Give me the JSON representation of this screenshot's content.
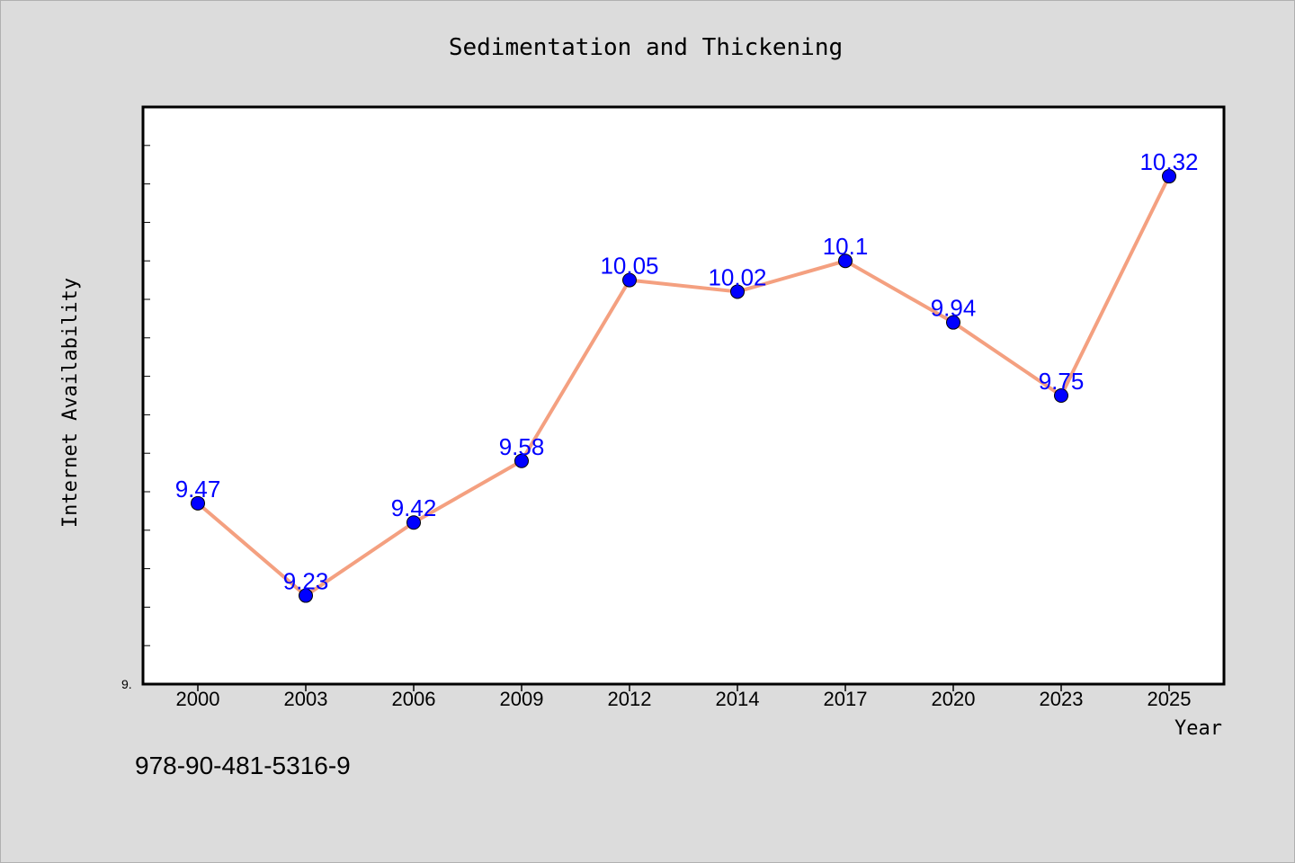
{
  "chart_data": {
    "type": "line",
    "title": "Sedimentation and Thickening",
    "xlabel": "Year",
    "ylabel": "Internet Availability",
    "categories": [
      "2000",
      "2003",
      "2006",
      "2009",
      "2012",
      "2014",
      "2017",
      "2020",
      "2023",
      "2025"
    ],
    "series": [
      {
        "values": [
          9.47,
          9.23,
          9.42,
          9.58,
          10.05,
          10.02,
          10.1,
          9.94,
          9.75,
          10.32
        ]
      }
    ],
    "data_labels": [
      "9.47",
      "9.23",
      "9.42",
      "9.58",
      "10.05",
      "10.02",
      "10.1",
      "9.94",
      "9.75",
      "10.32"
    ],
    "ylim": [
      9.0,
      10.5
    ],
    "y_origin_label": "9.",
    "grid": false,
    "line_color": "#f4a080",
    "marker_color": "#0000ff",
    "label_color": "#0000ff"
  },
  "footer": {
    "code": "978-90-481-5316-9"
  }
}
